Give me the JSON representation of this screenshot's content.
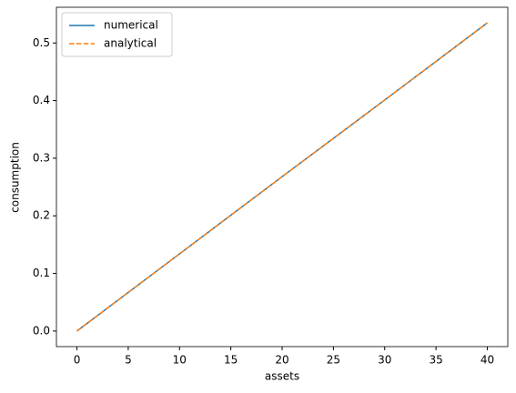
{
  "chart_data": {
    "type": "line",
    "xlabel": "assets",
    "ylabel": "consumption",
    "x": [
      0,
      10,
      20,
      30,
      40
    ],
    "series": [
      {
        "name": "numerical",
        "color": "#1f77b4",
        "linestyle": "solid",
        "values": [
          0,
          0.134,
          0.268,
          0.401,
          0.535
        ]
      },
      {
        "name": "analytical",
        "color": "#ff7f0e",
        "linestyle": "dashed",
        "values": [
          0,
          0.134,
          0.268,
          0.401,
          0.535
        ]
      }
    ],
    "xlim": [
      -2,
      42
    ],
    "xticks": [
      0,
      5,
      10,
      15,
      20,
      25,
      30,
      35,
      40
    ],
    "ylim": [
      -0.027,
      0.562
    ],
    "yticks": [
      {
        "value": 0,
        "label": "0.0"
      },
      0.1,
      0.2,
      0.3,
      0.4,
      0.5
    ],
    "grid": false,
    "legend": "upper left"
  }
}
